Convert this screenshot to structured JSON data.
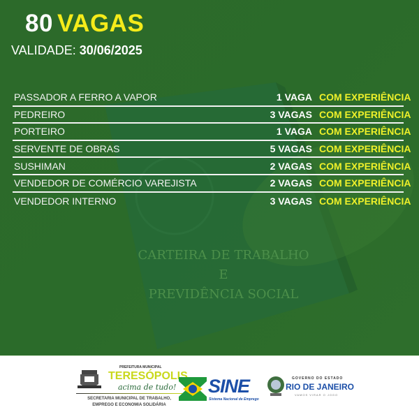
{
  "header": {
    "count": "80",
    "word": "VAGAS",
    "validity_label": "VALIDADE:",
    "validity_date": "30/06/2025"
  },
  "jobs": [
    {
      "role": "PASSADOR A FERRO A VAPOR",
      "qty": "1 VAGA",
      "req": "COM EXPERIÊNCIA"
    },
    {
      "role": "PEDREIRO",
      "qty": "3 VAGAS",
      "req": "COM EXPERIÊNCIA"
    },
    {
      "role": "PORTEIRO",
      "qty": "1 VAGA",
      "req": "COM EXPERIÊNCIA"
    },
    {
      "role": "SERVENTE DE OBRAS",
      "qty": "5 VAGAS",
      "req": "COM EXPERIÊNCIA"
    },
    {
      "role": "SUSHIMAN",
      "qty": "2 VAGAS",
      "req": "COM EXPERIÊNCIA"
    },
    {
      "role": "VENDEDOR DE COMÉRCIO VAREJISTA",
      "qty": "2 VAGAS",
      "req": "COM EXPERIÊNCIA"
    },
    {
      "role": "VENDEDOR INTERNO",
      "qty": "3 VAGAS",
      "req": "COM EXPERIÊNCIA"
    }
  ],
  "background": {
    "booklet_line1": "CARTEIRA DE TRABALHO",
    "booklet_line2": "E",
    "booklet_line3": "PREVIDÊNCIA SOCIAL"
  },
  "footer": {
    "teresopolis": {
      "small": "PREFEITURA MUNICIPAL",
      "name": "TERESÓPOLIS",
      "slogan": "acima de tudo!",
      "secretaria_1": "SECRETARIA MUNICIPAL DE TRABALHO,",
      "secretaria_2": "EMPREGO E ECONOMIA SOLIDÁRIA"
    },
    "sine": {
      "name": "SINE",
      "subtitle": "Sistema Nacional de Emprego"
    },
    "rj": {
      "small": "GOVERNO DO ESTADO",
      "name": "RIO DE JANEIRO",
      "tagline": "VAMOS VIRAR O JOGO"
    }
  },
  "colors": {
    "background_green": "#2c6a2a",
    "accent_yellow": "#f5eb1a",
    "sine_blue": "#1c4fa8"
  }
}
